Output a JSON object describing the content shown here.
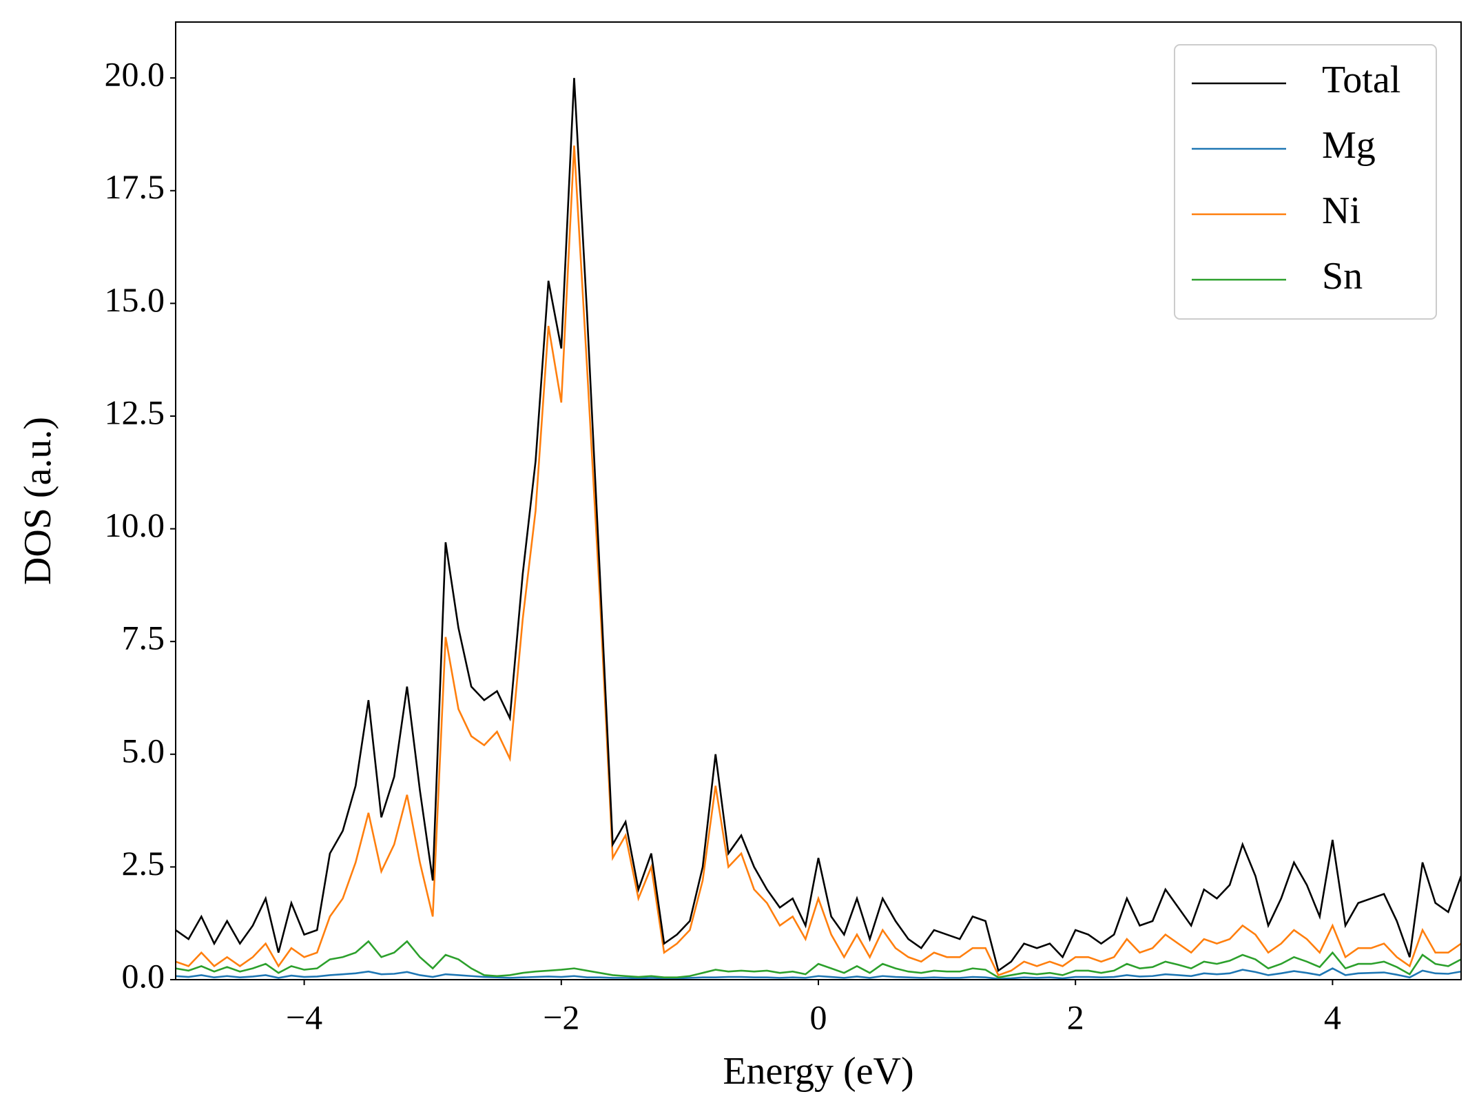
{
  "chart_data": {
    "type": "line",
    "xlabel": "Energy (eV)",
    "ylabel": "DOS (a.u.)",
    "x": [
      -5.0,
      -4.9,
      -4.8,
      -4.7,
      -4.6,
      -4.5,
      -4.4,
      -4.3,
      -4.2,
      -4.1,
      -4.0,
      -3.9,
      -3.8,
      -3.7,
      -3.6,
      -3.5,
      -3.4,
      -3.3,
      -3.2,
      -3.1,
      -3.0,
      -2.9,
      -2.8,
      -2.7,
      -2.6,
      -2.5,
      -2.4,
      -2.3,
      -2.2,
      -2.1,
      -2.0,
      -1.9,
      -1.8,
      -1.7,
      -1.6,
      -1.5,
      -1.4,
      -1.3,
      -1.2,
      -1.1,
      -1.0,
      -0.9,
      -0.8,
      -0.7,
      -0.6,
      -0.5,
      -0.4,
      -0.3,
      -0.2,
      -0.1,
      0.0,
      0.1,
      0.2,
      0.3,
      0.4,
      0.5,
      0.6,
      0.7,
      0.8,
      0.9,
      1.0,
      1.1,
      1.2,
      1.3,
      1.4,
      1.5,
      1.6,
      1.7,
      1.8,
      1.9,
      2.0,
      2.1,
      2.2,
      2.3,
      2.4,
      2.5,
      2.6,
      2.7,
      2.8,
      2.9,
      3.0,
      3.1,
      3.2,
      3.3,
      3.4,
      3.5,
      3.6,
      3.7,
      3.8,
      3.9,
      4.0,
      4.1,
      4.2,
      4.3,
      4.4,
      4.5,
      4.6,
      4.7,
      4.8,
      4.9,
      5.0
    ],
    "series": [
      {
        "name": "Total",
        "color": "#000000",
        "values": [
          1.1,
          0.9,
          1.4,
          0.8,
          1.3,
          0.8,
          1.2,
          1.8,
          0.6,
          1.7,
          1.0,
          1.1,
          2.8,
          3.3,
          4.3,
          6.2,
          3.6,
          4.5,
          6.5,
          4.2,
          2.2,
          9.7,
          7.8,
          6.5,
          6.2,
          6.4,
          5.8,
          9.0,
          11.5,
          15.5,
          14.0,
          20.0,
          14.8,
          9.0,
          3.0,
          3.5,
          2.0,
          2.8,
          0.8,
          1.0,
          1.3,
          2.5,
          5.0,
          2.8,
          3.2,
          2.5,
          2.0,
          1.6,
          1.8,
          1.2,
          2.7,
          1.4,
          1.0,
          1.8,
          0.9,
          1.8,
          1.3,
          0.9,
          0.7,
          1.1,
          1.0,
          0.9,
          1.4,
          1.3,
          0.2,
          0.4,
          0.8,
          0.7,
          0.8,
          0.5,
          1.1,
          1.0,
          0.8,
          1.0,
          1.8,
          1.2,
          1.3,
          2.0,
          1.6,
          1.2,
          2.0,
          1.8,
          2.1,
          3.0,
          2.3,
          1.2,
          1.8,
          2.6,
          2.1,
          1.4,
          3.1,
          1.2,
          1.7,
          1.8,
          1.9,
          1.3,
          0.5,
          2.6,
          1.7,
          1.5,
          2.3
        ]
      },
      {
        "name": "Mg",
        "color": "#1f77b4",
        "values": [
          0.08,
          0.06,
          0.1,
          0.05,
          0.08,
          0.05,
          0.07,
          0.1,
          0.04,
          0.09,
          0.06,
          0.07,
          0.1,
          0.12,
          0.14,
          0.18,
          0.12,
          0.13,
          0.17,
          0.1,
          0.06,
          0.12,
          0.1,
          0.08,
          0.06,
          0.05,
          0.04,
          0.05,
          0.06,
          0.07,
          0.06,
          0.08,
          0.05,
          0.05,
          0.04,
          0.04,
          0.03,
          0.04,
          0.03,
          0.03,
          0.04,
          0.05,
          0.05,
          0.06,
          0.06,
          0.05,
          0.05,
          0.04,
          0.05,
          0.04,
          0.08,
          0.06,
          0.04,
          0.07,
          0.04,
          0.08,
          0.06,
          0.05,
          0.04,
          0.05,
          0.04,
          0.04,
          0.06,
          0.05,
          0.02,
          0.03,
          0.05,
          0.04,
          0.05,
          0.03,
          0.06,
          0.06,
          0.05,
          0.06,
          0.1,
          0.07,
          0.08,
          0.12,
          0.1,
          0.08,
          0.14,
          0.12,
          0.14,
          0.22,
          0.17,
          0.1,
          0.14,
          0.19,
          0.15,
          0.1,
          0.25,
          0.1,
          0.14,
          0.15,
          0.16,
          0.11,
          0.05,
          0.2,
          0.14,
          0.13,
          0.18
        ]
      },
      {
        "name": "Ni",
        "color": "#ff7f0e",
        "values": [
          0.4,
          0.3,
          0.6,
          0.3,
          0.5,
          0.3,
          0.5,
          0.8,
          0.3,
          0.7,
          0.5,
          0.6,
          1.4,
          1.8,
          2.6,
          3.7,
          2.4,
          3.0,
          4.1,
          2.6,
          1.4,
          7.6,
          6.0,
          5.4,
          5.2,
          5.5,
          4.9,
          8.0,
          10.4,
          14.5,
          12.8,
          18.5,
          13.6,
          8.5,
          2.7,
          3.2,
          1.8,
          2.5,
          0.6,
          0.8,
          1.1,
          2.2,
          4.3,
          2.5,
          2.8,
          2.0,
          1.7,
          1.2,
          1.4,
          0.9,
          1.8,
          1.0,
          0.5,
          1.0,
          0.5,
          1.1,
          0.7,
          0.5,
          0.4,
          0.6,
          0.5,
          0.5,
          0.7,
          0.7,
          0.1,
          0.2,
          0.4,
          0.3,
          0.4,
          0.3,
          0.5,
          0.5,
          0.4,
          0.5,
          0.9,
          0.6,
          0.7,
          1.0,
          0.8,
          0.6,
          0.9,
          0.8,
          0.9,
          1.2,
          1.0,
          0.6,
          0.8,
          1.1,
          0.9,
          0.6,
          1.2,
          0.5,
          0.7,
          0.7,
          0.8,
          0.5,
          0.3,
          1.1,
          0.6,
          0.6,
          0.8
        ]
      },
      {
        "name": "Sn",
        "color": "#2ca02c",
        "values": [
          0.25,
          0.2,
          0.3,
          0.18,
          0.28,
          0.18,
          0.25,
          0.35,
          0.15,
          0.3,
          0.22,
          0.25,
          0.45,
          0.5,
          0.6,
          0.85,
          0.5,
          0.6,
          0.85,
          0.5,
          0.25,
          0.55,
          0.45,
          0.25,
          0.1,
          0.08,
          0.1,
          0.15,
          0.18,
          0.2,
          0.22,
          0.25,
          0.2,
          0.15,
          0.1,
          0.08,
          0.06,
          0.08,
          0.05,
          0.05,
          0.08,
          0.15,
          0.22,
          0.18,
          0.2,
          0.18,
          0.2,
          0.15,
          0.18,
          0.12,
          0.35,
          0.25,
          0.15,
          0.3,
          0.15,
          0.35,
          0.25,
          0.18,
          0.15,
          0.2,
          0.18,
          0.18,
          0.25,
          0.22,
          0.05,
          0.1,
          0.15,
          0.12,
          0.15,
          0.1,
          0.2,
          0.2,
          0.15,
          0.2,
          0.35,
          0.25,
          0.28,
          0.4,
          0.33,
          0.25,
          0.4,
          0.35,
          0.42,
          0.55,
          0.45,
          0.25,
          0.35,
          0.5,
          0.4,
          0.28,
          0.6,
          0.25,
          0.35,
          0.35,
          0.4,
          0.28,
          0.12,
          0.55,
          0.35,
          0.3,
          0.45
        ]
      }
    ],
    "xlim": [
      -5,
      5
    ],
    "ylim": [
      0,
      21.24
    ],
    "xticks": [
      {
        "value": -4,
        "label": "−4"
      },
      {
        "value": -2,
        "label": "−2"
      },
      0,
      2,
      4
    ],
    "yticks": [
      {
        "value": 0,
        "label": "0.0"
      },
      2.5,
      {
        "value": 5,
        "label": "5.0"
      },
      7.5,
      {
        "value": 10,
        "label": "10.0"
      },
      12.5,
      {
        "value": 15,
        "label": "15.0"
      },
      17.5,
      {
        "value": 20,
        "label": "20.0"
      }
    ],
    "legend": "upper right"
  }
}
